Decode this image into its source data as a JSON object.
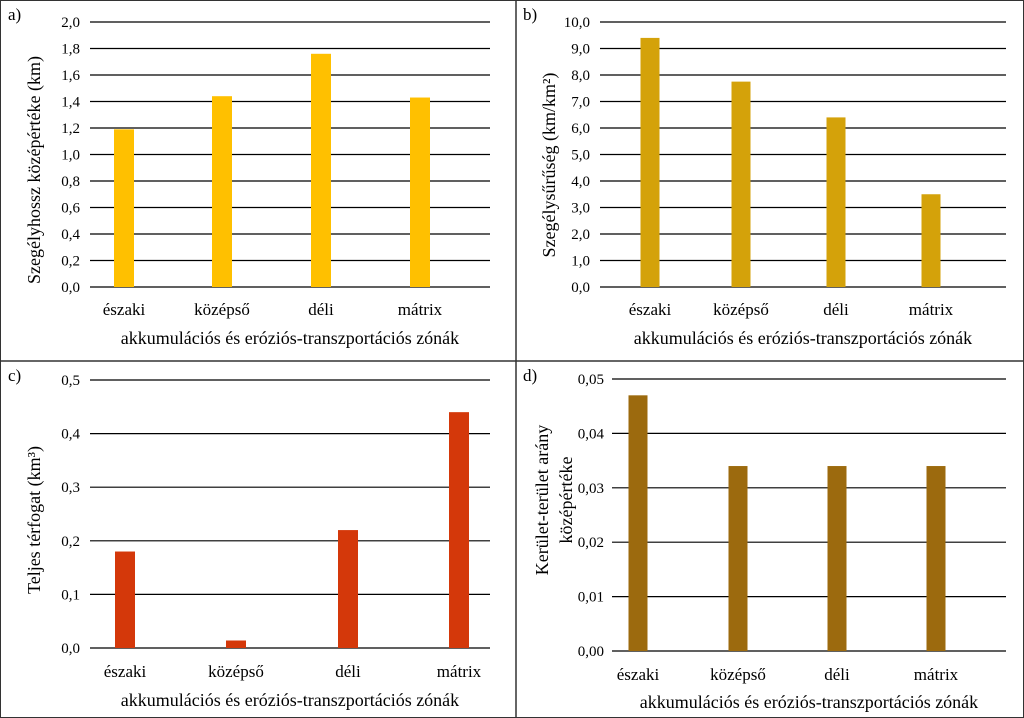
{
  "chart_data": [
    {
      "type": "bar",
      "panel": "a)",
      "title": "",
      "categories": [
        "északi",
        "középső",
        "déli",
        "mátrix"
      ],
      "values": [
        1.19,
        1.44,
        1.76,
        1.43
      ],
      "ylabel": "Szegélyhossz középértéke (km)",
      "xlabel": "akkumulációs és eróziós-transzportációs zónák",
      "ylim": [
        0,
        2.0
      ],
      "ticks": [
        "0,0",
        "0,2",
        "0,4",
        "0,6",
        "0,8",
        "1,0",
        "1,2",
        "1,4",
        "1,6",
        "1,8",
        "2,0"
      ],
      "color": "#FFC000",
      "grid": true
    },
    {
      "type": "bar",
      "panel": "b)",
      "title": "",
      "categories": [
        "északi",
        "középső",
        "déli",
        "mátrix"
      ],
      "values": [
        9.4,
        7.75,
        6.4,
        3.5
      ],
      "ylabel": "Szegélysűrűség (km/km²)",
      "xlabel": "akkumulációs és eróziós-transzportációs zónák",
      "ylim": [
        0,
        10.0
      ],
      "ticks": [
        "0,0",
        "1,0",
        "2,0",
        "3,0",
        "4,0",
        "5,0",
        "6,0",
        "7,0",
        "8,0",
        "9,0",
        "10,0"
      ],
      "color": "#D4A20A",
      "grid": true
    },
    {
      "type": "bar",
      "panel": "c)",
      "title": "",
      "categories": [
        "északi",
        "középső",
        "déli",
        "mátrix"
      ],
      "values": [
        0.18,
        0.014,
        0.22,
        0.44
      ],
      "ylabel": "Teljes térfogat (km³)",
      "xlabel": "akkumulációs és eróziós-transzportációs zónák",
      "ylim": [
        0,
        0.5
      ],
      "ticks": [
        "0,0",
        "0,1",
        "0,2",
        "0,3",
        "0,4",
        "0,5"
      ],
      "color": "#D4380A",
      "grid": true
    },
    {
      "type": "bar",
      "panel": "d)",
      "title": "",
      "categories": [
        "északi",
        "középső",
        "déli",
        "mátrix"
      ],
      "values": [
        0.047,
        0.034,
        0.034,
        0.034
      ],
      "ylabel": "Kerület-terület arány középértéke",
      "ylabel_lines": [
        "Kerület-terület arány",
        "középértéke"
      ],
      "xlabel": "akkumulációs és eróziós-transzportációs zónák",
      "ylim": [
        0,
        0.05
      ],
      "ticks": [
        "0,00",
        "0,01",
        "0,02",
        "0,03",
        "0,04",
        "0,05"
      ],
      "color": "#9C6A0E",
      "grid": true
    }
  ]
}
